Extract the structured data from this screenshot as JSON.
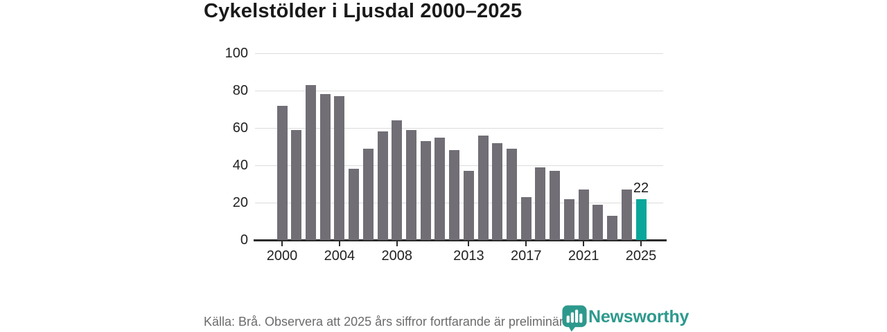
{
  "title": "Cykelstölder i Ljusdal 2000–2025",
  "footer": {
    "source_note": "Källa: Brå. Observera att 2025 års siffror fortfarande är preliminära.",
    "brand": "Newsworthy"
  },
  "colors": {
    "bar_default": "#716e76",
    "bar_highlight": "#0aa69b",
    "brand_teal": "#2d998d",
    "grid": "#dcdcdc",
    "axis": "#2b2b2b",
    "title_text": "#1a1a1a",
    "tick_text": "#222222",
    "source_text": "#6b6b6b"
  },
  "chart_data": {
    "type": "bar",
    "title": "Cykelstölder i Ljusdal 2000–2025",
    "categories": [
      2000,
      2001,
      2002,
      2003,
      2004,
      2005,
      2006,
      2007,
      2008,
      2009,
      2010,
      2011,
      2012,
      2013,
      2014,
      2015,
      2016,
      2017,
      2018,
      2019,
      2020,
      2021,
      2022,
      2023,
      2024,
      2025
    ],
    "values": [
      72,
      59,
      83,
      78,
      77,
      38,
      49,
      58,
      64,
      59,
      53,
      55,
      48,
      37,
      56,
      52,
      49,
      23,
      39,
      37,
      22,
      27,
      19,
      13,
      27,
      22
    ],
    "highlight_category": 2025,
    "highlight_value_label": "22",
    "xlabel": "",
    "ylabel": "",
    "ylim": [
      0,
      100
    ],
    "yticks": [
      0,
      20,
      40,
      60,
      80,
      100
    ],
    "xticks": [
      2000,
      2004,
      2008,
      2013,
      2017,
      2021,
      2025
    ],
    "grid": true,
    "legend": false
  }
}
